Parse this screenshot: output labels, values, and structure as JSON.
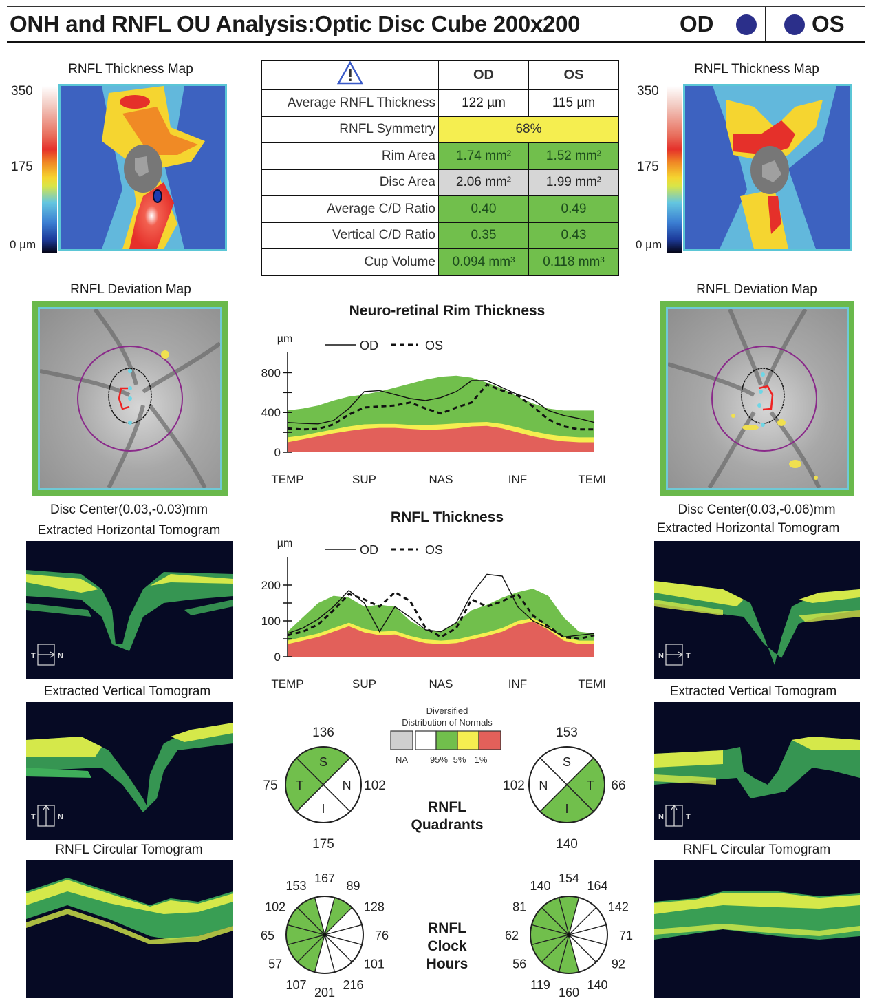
{
  "header": {
    "title": "ONH and RNFL OU Analysis:Optic Disc Cube 200x200",
    "od_label": "OD",
    "os_label": "OS",
    "eye_dot_color": "#2b2f8a"
  },
  "thickness_map": {
    "title": "RNFL Thickness Map",
    "scale_max": "350",
    "scale_mid": "175",
    "scale_min": "0 µm"
  },
  "summary_table": {
    "warning_icon": "warning-triangle-icon",
    "col_od": "OD",
    "col_os": "OS",
    "rows": [
      {
        "label": "Average RNFL Thickness",
        "od": "122 µm",
        "os": "115 µm",
        "status": "white"
      },
      {
        "label": "RNFL Symmetry",
        "combined": "68%",
        "status": "yellow"
      },
      {
        "label": "Rim Area",
        "od": "1.74 mm²",
        "os": "1.52 mm²",
        "status": "green"
      },
      {
        "label": "Disc Area",
        "od": "2.06 mm²",
        "os": "1.99 mm²",
        "status": "gray"
      },
      {
        "label": "Average C/D Ratio",
        "od": "0.40",
        "os": "0.49",
        "status": "green"
      },
      {
        "label": "Vertical C/D Ratio",
        "od": "0.35",
        "os": "0.43",
        "status": "green"
      },
      {
        "label": "Cup Volume",
        "od": "0.094 mm³",
        "os": "0.118 mm³",
        "status": "green"
      }
    ]
  },
  "deviation_map": {
    "title": "RNFL Deviation Map",
    "od_disc_center": "Disc Center(0.03,-0.03)mm",
    "os_disc_center": "Disc Center(0.03,-0.06)mm"
  },
  "tomograms": {
    "horizontal": "Extracted Horizontal Tomogram",
    "vertical": "Extracted Vertical Tomogram",
    "circular": "RNFL Circular Tomogram",
    "od_h_left": "T",
    "od_h_right": "N",
    "od_v_left": "T",
    "od_v_right": "N",
    "os_h_left": "N",
    "os_h_right": "T",
    "os_v_left": "N",
    "os_v_right": "T"
  },
  "colors": {
    "normal_green": "#71bf4c",
    "borderline_yellow": "#f5ee50",
    "outside_red": "#e2605a",
    "na_gray": "#cfcfcf",
    "above_white": "#ffffff"
  },
  "chart_data": [
    {
      "type": "area",
      "title": "Neuro-retinal Rim Thickness",
      "ylabel": "µm",
      "xlabel": "",
      "legend": [
        "OD",
        "OS"
      ],
      "legend_position": "top-left",
      "ylim": [
        0,
        900
      ],
      "yticks": [
        0,
        400,
        800
      ],
      "xtick_labels": [
        "TEMP",
        "SUP",
        "NAS",
        "INF",
        "TEMP"
      ],
      "x": [
        0,
        0.05,
        0.1,
        0.15,
        0.2,
        0.25,
        0.3,
        0.35,
        0.4,
        0.45,
        0.5,
        0.55,
        0.6,
        0.65,
        0.7,
        0.75,
        0.8,
        0.85,
        0.9,
        0.95,
        1.0
      ],
      "bands": {
        "red_top": [
          100,
          130,
          160,
          190,
          215,
          235,
          245,
          245,
          235,
          225,
          230,
          240,
          260,
          265,
          240,
          200,
          160,
          130,
          110,
          100,
          100
        ],
        "yellow_top": [
          150,
          170,
          200,
          230,
          260,
          280,
          285,
          285,
          275,
          275,
          280,
          290,
          300,
          305,
          285,
          250,
          210,
          180,
          160,
          150,
          150
        ],
        "green_top": [
          420,
          440,
          470,
          520,
          560,
          580,
          610,
          650,
          690,
          730,
          760,
          770,
          750,
          700,
          640,
          560,
          490,
          440,
          420,
          420,
          420
        ]
      },
      "series": [
        {
          "name": "OD",
          "style": "solid",
          "values": [
            300,
            290,
            285,
            320,
            440,
            610,
            620,
            580,
            540,
            520,
            550,
            610,
            720,
            720,
            650,
            580,
            530,
            420,
            370,
            340,
            300
          ]
        },
        {
          "name": "OS",
          "style": "dashed",
          "values": [
            240,
            230,
            235,
            280,
            380,
            450,
            460,
            470,
            500,
            440,
            390,
            450,
            500,
            680,
            620,
            570,
            460,
            330,
            260,
            230,
            230
          ]
        }
      ]
    },
    {
      "type": "area",
      "title": "RNFL Thickness",
      "ylabel": "µm",
      "xlabel": "",
      "legend": [
        "OD",
        "OS"
      ],
      "legend_position": "top-left",
      "ylim": [
        0,
        250
      ],
      "yticks": [
        0,
        100,
        200
      ],
      "xtick_labels": [
        "TEMP",
        "SUP",
        "NAS",
        "INF",
        "TEMP"
      ],
      "x": [
        0,
        0.05,
        0.1,
        0.15,
        0.2,
        0.25,
        0.3,
        0.35,
        0.4,
        0.45,
        0.5,
        0.55,
        0.6,
        0.65,
        0.7,
        0.75,
        0.8,
        0.85,
        0.9,
        0.95,
        1.0
      ],
      "bands": {
        "red_top": [
          35,
          45,
          55,
          70,
          85,
          68,
          60,
          62,
          48,
          38,
          35,
          38,
          48,
          58,
          70,
          90,
          98,
          75,
          45,
          35,
          35
        ],
        "yellow_top": [
          45,
          55,
          65,
          80,
          95,
          78,
          70,
          72,
          58,
          48,
          45,
          48,
          58,
          68,
          80,
          100,
          108,
          85,
          55,
          45,
          45
        ],
        "green_top": [
          70,
          110,
          150,
          170,
          165,
          140,
          145,
          140,
          100,
          75,
          70,
          95,
          130,
          145,
          165,
          180,
          190,
          170,
          110,
          70,
          65
        ]
      },
      "series": [
        {
          "name": "OD",
          "style": "solid",
          "values": [
            65,
            80,
            105,
            140,
            185,
            150,
            70,
            140,
            110,
            75,
            70,
            95,
            175,
            230,
            225,
            140,
            100,
            80,
            55,
            60,
            65
          ]
        },
        {
          "name": "OS",
          "style": "dashed",
          "values": [
            60,
            70,
            90,
            130,
            175,
            160,
            140,
            180,
            155,
            80,
            55,
            80,
            160,
            140,
            155,
            175,
            115,
            85,
            55,
            50,
            60
          ]
        }
      ]
    },
    {
      "type": "pie",
      "title": "RNFL Quadrants",
      "eye": "OD",
      "slices": [
        {
          "label": "S",
          "value": 136,
          "status": "green"
        },
        {
          "label": "N",
          "value": 102,
          "status": "white"
        },
        {
          "label": "I",
          "value": 175,
          "status": "white"
        },
        {
          "label": "T",
          "value": 75,
          "status": "green"
        }
      ]
    },
    {
      "type": "pie",
      "title": "RNFL Quadrants",
      "eye": "OS",
      "slices": [
        {
          "label": "S",
          "value": 153,
          "status": "white"
        },
        {
          "label": "T",
          "value": 66,
          "status": "green"
        },
        {
          "label": "I",
          "value": 140,
          "status": "green"
        },
        {
          "label": "N",
          "value": 102,
          "status": "white"
        }
      ]
    },
    {
      "type": "pie",
      "title": "RNFL Clock Hours",
      "eye": "OD",
      "clock_hours": [
        {
          "hour": 12,
          "value": 167,
          "status": "white"
        },
        {
          "hour": 1,
          "value": 89,
          "status": "green"
        },
        {
          "hour": 2,
          "value": 128,
          "status": "white"
        },
        {
          "hour": 3,
          "value": 76,
          "status": "white"
        },
        {
          "hour": 4,
          "value": 101,
          "status": "white"
        },
        {
          "hour": 5,
          "value": 216,
          "status": "white"
        },
        {
          "hour": 6,
          "value": 201,
          "status": "white"
        },
        {
          "hour": 7,
          "value": 107,
          "status": "green"
        },
        {
          "hour": 8,
          "value": 57,
          "status": "green"
        },
        {
          "hour": 9,
          "value": 65,
          "status": "green"
        },
        {
          "hour": 10,
          "value": 102,
          "status": "green"
        },
        {
          "hour": 11,
          "value": 153,
          "status": "green"
        }
      ]
    },
    {
      "type": "pie",
      "title": "RNFL Clock Hours",
      "eye": "OS",
      "clock_hours": [
        {
          "hour": 12,
          "value": 154,
          "status": "green"
        },
        {
          "hour": 1,
          "value": 140,
          "status": "green"
        },
        {
          "hour": 2,
          "value": 81,
          "status": "green"
        },
        {
          "hour": 3,
          "value": 62,
          "status": "green"
        },
        {
          "hour": 4,
          "value": 56,
          "status": "green"
        },
        {
          "hour": 5,
          "value": 119,
          "status": "green"
        },
        {
          "hour": 6,
          "value": 160,
          "status": "green"
        },
        {
          "hour": 7,
          "value": 140,
          "status": "white"
        },
        {
          "hour": 8,
          "value": 92,
          "status": "white"
        },
        {
          "hour": 9,
          "value": 71,
          "status": "white"
        },
        {
          "hour": 10,
          "value": 142,
          "status": "white"
        },
        {
          "hour": 11,
          "value": 164,
          "status": "white"
        }
      ]
    }
  ],
  "legend_normals": {
    "title_line1": "Diversified",
    "title_line2": "Distribution of Normals",
    "na": "NA",
    "p95": "95%",
    "p5": "5%",
    "p1": "1%"
  },
  "quadrants_title_line1": "RNFL",
  "quadrants_title_line2": "Quadrants",
  "clock_title_line1": "RNFL",
  "clock_title_line2": "Clock",
  "clock_title_line3": "Hours"
}
